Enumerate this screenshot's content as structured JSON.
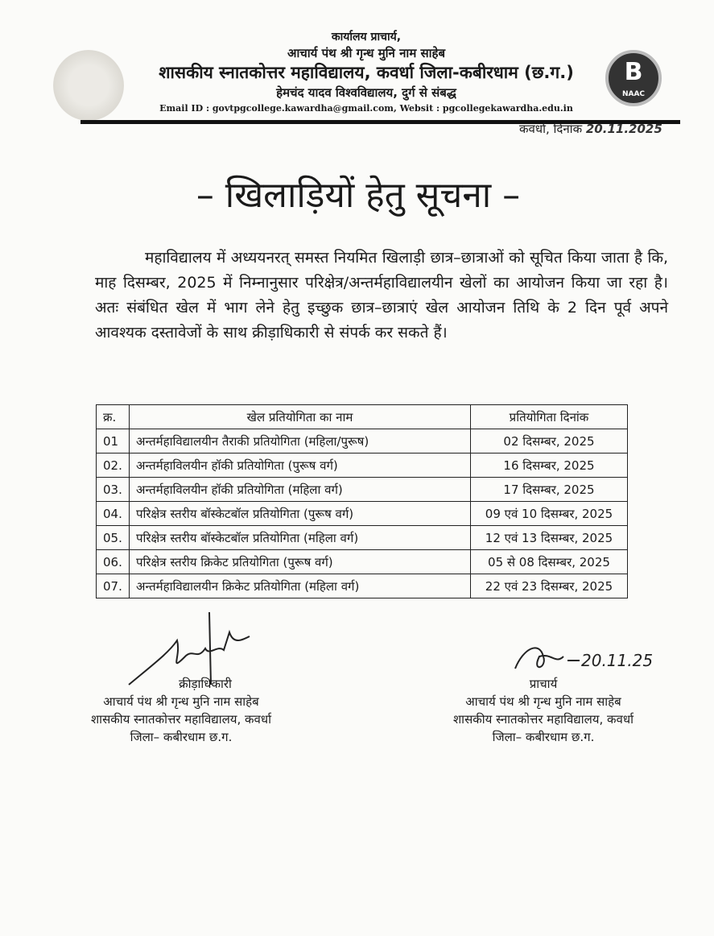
{
  "header": {
    "office": "कार्यालय प्राचार्य,",
    "patron": "आचार्य पंथ श्री गृन्ध मुनि नाम साहेब",
    "college": "शासकीय स्नातकोत्तर महाविद्यालय, कवर्धा जिला-कबीरधाम (छ.ग.)",
    "affiliation": "हेमचंद यादव विश्वविद्यालय, दुर्ग से संबद्ध",
    "contact": "Email ID : govtpgcollege.kawardha@gmail.com, Websit : pgcollegekawardha.edu.in",
    "naac_grade": "B",
    "naac_label": "NAAC",
    "place_date_label": "कवर्धा, दिनांक",
    "date": "20.11.2025"
  },
  "title": "– खिलाड़ियों हेतु सूचना –",
  "body": "महाविद्यालय में अध्ययनरत् समस्त नियमित खिलाड़ी छात्र–छात्राओं को सूचित किया जाता है कि, माह दिसम्बर, 2025 में निम्नानुसार परिक्षेत्र/अन्तर्महाविद्यालयीन खेलों का आयोजन किया जा रहा है। अतः संबंधित खेल में भाग लेने हेतु इच्छुक छात्र–छात्राएं खेल आयोजन तिथि के 2 दिन पूर्व अपने आवश्यक दस्तावेजों के साथ क्रीड़ाधिकारी से संपर्क कर सकते हैं।",
  "table": {
    "headers": [
      "क्र.",
      "खेल प्रतियोगिता का नाम",
      "प्रतियोगिता दिनांक"
    ],
    "rows": [
      [
        "01",
        "अन्तर्महाविद्यालयीन तैराकी प्रतियोगिता (महिला/पुरूष)",
        "02 दिसम्बर, 2025"
      ],
      [
        "02.",
        "अन्तर्महाविलयीन हॉकी प्रतियोगिता (पुरूष वर्ग)",
        "16 दिसम्बर, 2025"
      ],
      [
        "03.",
        "अन्तर्महाविलयीन हॉकी प्रतियोगिता (महिला वर्ग)",
        "17 दिसम्बर, 2025"
      ],
      [
        "04.",
        "परिक्षेत्र स्तरीय बॉस्केटबॉल प्रतियोगिता (पुरूष वर्ग)",
        "09 एवं 10 दिसम्बर, 2025"
      ],
      [
        "05.",
        "परिक्षेत्र स्तरीय बॉस्केटबॉल प्रतियोगिता (महिला वर्ग)",
        "12 एवं 13 दिसम्बर, 2025"
      ],
      [
        "06.",
        "परिक्षेत्र स्तरीय क्रिकेट प्रतियोगिता (पुरूष वर्ग)",
        "05 से 08 दिसम्बर, 2025"
      ],
      [
        "07.",
        "अन्तर्महाविद्यालयीन क्रिकेट प्रतियोगिता (महिला वर्ग)",
        "22 एवं 23 दिसम्बर, 2025"
      ]
    ]
  },
  "signatories": {
    "left": {
      "title": "क्रीड़ाधिकारी",
      "line1": "आचार्य पंथ श्री गृन्ध मुनि नाम साहेब",
      "line2": "शासकीय स्नातकोत्तर महाविद्यालय, कवर्धा",
      "line3": "जिला– कबीरधाम छ.ग."
    },
    "right": {
      "title": "प्राचार्य",
      "line1": "आचार्य पंथ श्री गृन्ध मुनि नाम साहेब",
      "line2": "शासकीय स्नातकोत्तर महाविद्यालय, कवर्धा",
      "line3": "जिला– कबीरधाम छ.ग.",
      "handwritten_date": "20.11.25"
    }
  }
}
